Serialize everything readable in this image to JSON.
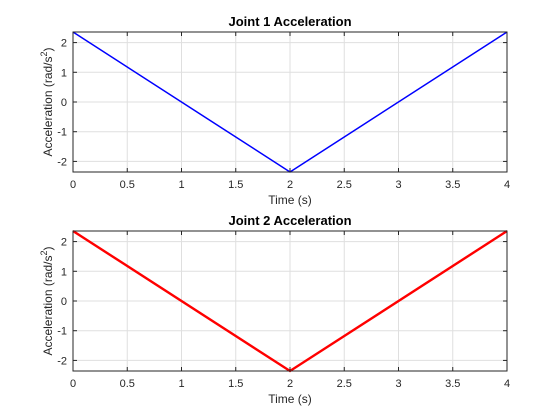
{
  "chart_data": [
    {
      "type": "line",
      "title": "Joint 1 Acceleration",
      "xlabel": "Time (s)",
      "ylabel": "Acceleration (rad/s",
      "ylabel_superscript": "2",
      "ylabel_suffix": ")",
      "xlim": [
        0,
        4
      ],
      "ylim": [
        -2.356,
        2.356
      ],
      "xticks": [
        0,
        0.5,
        1,
        1.5,
        2,
        2.5,
        3,
        3.5,
        4
      ],
      "xtick_labels": [
        "0",
        "0.5",
        "1",
        "1.5",
        "2",
        "2.5",
        "3",
        "3.5",
        "4"
      ],
      "yticks": [
        -2,
        -1,
        0,
        1,
        2
      ],
      "ytick_labels": [
        "-2",
        "-1",
        "0",
        "1",
        "2"
      ],
      "grid": true,
      "series": [
        {
          "color": "#0000ff",
          "x": [
            0,
            2,
            4
          ],
          "y": [
            2.356,
            -2.356,
            2.356
          ]
        }
      ]
    },
    {
      "type": "line",
      "title": "Joint 2 Acceleration",
      "xlabel": "Time (s)",
      "ylabel": "Acceleration (rad/s",
      "ylabel_superscript": "2",
      "ylabel_suffix": ")",
      "xlim": [
        0,
        4
      ],
      "ylim": [
        -2.356,
        2.356
      ],
      "xticks": [
        0,
        0.5,
        1,
        1.5,
        2,
        2.5,
        3,
        3.5,
        4
      ],
      "xtick_labels": [
        "0",
        "0.5",
        "1",
        "1.5",
        "2",
        "2.5",
        "3",
        "3.5",
        "4"
      ],
      "yticks": [
        -2,
        -1,
        0,
        1,
        2
      ],
      "ytick_labels": [
        "-2",
        "-1",
        "0",
        "1",
        "2"
      ],
      "grid": true,
      "series": [
        {
          "color": "#ff0000",
          "x": [
            0,
            2,
            4
          ],
          "y": [
            2.356,
            -2.356,
            2.356
          ]
        }
      ]
    }
  ]
}
